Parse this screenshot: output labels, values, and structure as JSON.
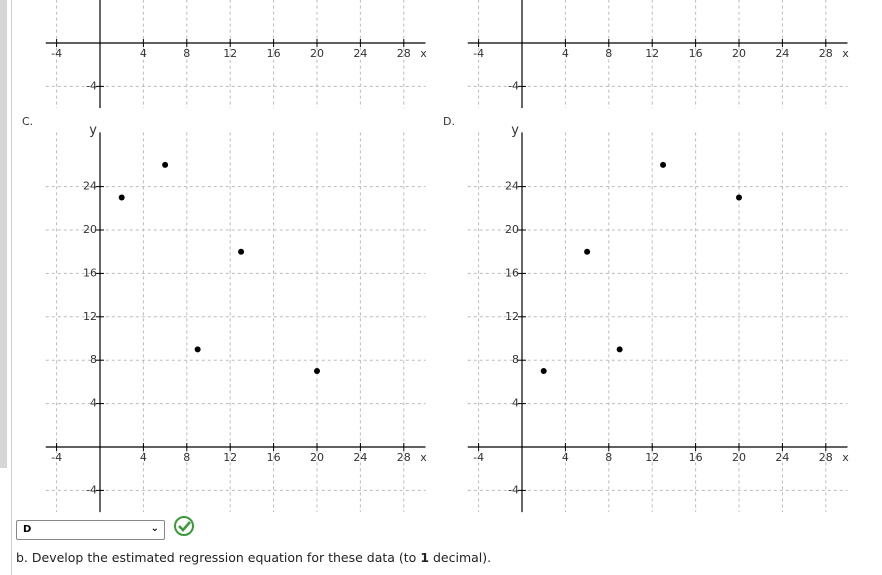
{
  "chart_data": [
    {
      "type": "scatter",
      "x": [],
      "y": [],
      "xlim": [
        -5,
        30
      ],
      "ylim": [
        -6,
        4
      ],
      "xticks": [
        -4,
        4,
        8,
        12,
        16,
        20,
        24,
        28
      ],
      "yticks": [
        -4
      ],
      "xlabel": "x",
      "grid": true,
      "color": "#000000"
    },
    {
      "type": "scatter",
      "x": [],
      "y": [],
      "xlim": [
        -5,
        30
      ],
      "ylim": [
        -6,
        4
      ],
      "xticks": [
        -4,
        4,
        8,
        12,
        16,
        20,
        24,
        28
      ],
      "yticks": [
        -4
      ],
      "xlabel": "x",
      "grid": true,
      "color": "#000000"
    },
    {
      "type": "scatter",
      "panel_label": "C.",
      "x": [
        2,
        6,
        9,
        13,
        20
      ],
      "y": [
        23,
        26,
        9,
        18,
        7
      ],
      "xlim": [
        -5,
        30
      ],
      "ylim": [
        -6,
        29
      ],
      "xticks": [
        -4,
        4,
        8,
        12,
        16,
        20,
        24,
        28
      ],
      "yticks": [
        -4,
        4,
        8,
        12,
        16,
        20,
        24
      ],
      "xlabel": "x",
      "ylabel": "y",
      "grid": true,
      "color": "#000000"
    },
    {
      "type": "scatter",
      "panel_label": "D.",
      "x": [
        2,
        6,
        9,
        13,
        20
      ],
      "y": [
        7,
        18,
        9,
        26,
        23
      ],
      "xlim": [
        -5,
        30
      ],
      "ylim": [
        -6,
        29
      ],
      "xticks": [
        -4,
        4,
        8,
        12,
        16,
        20,
        24,
        28
      ],
      "yticks": [
        -4,
        4,
        8,
        12,
        16,
        20,
        24
      ],
      "xlabel": "x",
      "ylabel": "y",
      "grid": true,
      "color": "#000000"
    }
  ],
  "answer": {
    "selected": "D"
  },
  "question": {
    "prefix": "b. Develop the estimated regression equation for these data (to ",
    "bold": "1",
    "suffix": " decimal)."
  }
}
